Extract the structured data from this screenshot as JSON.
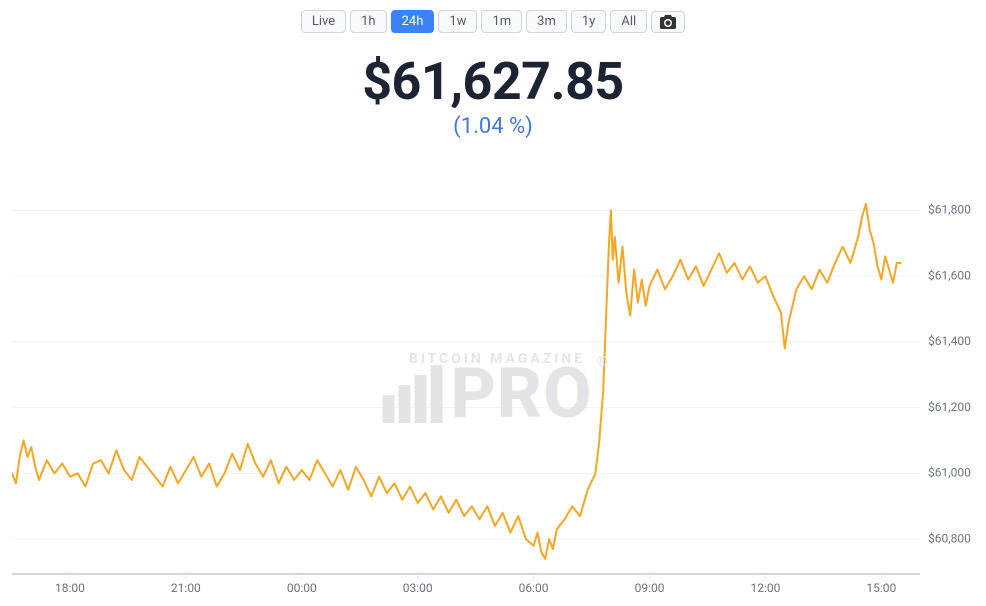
{
  "timeframes": {
    "options": [
      "Live",
      "1h",
      "24h",
      "1w",
      "1m",
      "3m",
      "1y",
      "All"
    ],
    "active_index": 2
  },
  "header": {
    "price": "$61,627.85",
    "change": "(1.04 %)",
    "change_color": "#4178d6"
  },
  "watermark": {
    "subtitle": "BITCOIN MAGAZINE",
    "main": "PRO"
  },
  "chart": {
    "type": "line",
    "line_color": "#f5a623",
    "line_width": 2,
    "background_color": "#ffffff",
    "grid_color": "#f1f2f4",
    "ylim": [
      60700,
      61850
    ],
    "yticks": [
      60800,
      61000,
      61200,
      61400,
      61600,
      61800
    ],
    "ytick_labels": [
      "$60,800",
      "$61,000",
      "$61,200",
      "$61,400",
      "$61,600",
      "$61,800"
    ],
    "xticks_hours": [
      18,
      21,
      24,
      27,
      30,
      33,
      36,
      39
    ],
    "xtick_labels": [
      "18:00",
      "21:00",
      "00:00",
      "03:00",
      "06:00",
      "09:00",
      "12:00",
      "15:00"
    ],
    "x_hour_min": 16.5,
    "x_hour_max": 40.0,
    "series": [
      [
        16.5,
        61000
      ],
      [
        16.6,
        60970
      ],
      [
        16.7,
        61050
      ],
      [
        16.8,
        61100
      ],
      [
        16.9,
        61050
      ],
      [
        17.0,
        61080
      ],
      [
        17.1,
        61020
      ],
      [
        17.2,
        60980
      ],
      [
        17.4,
        61040
      ],
      [
        17.6,
        61000
      ],
      [
        17.8,
        61030
      ],
      [
        18.0,
        60990
      ],
      [
        18.2,
        61000
      ],
      [
        18.4,
        60960
      ],
      [
        18.6,
        61030
      ],
      [
        18.8,
        61040
      ],
      [
        19.0,
        61000
      ],
      [
        19.2,
        61070
      ],
      [
        19.4,
        61010
      ],
      [
        19.6,
        60980
      ],
      [
        19.8,
        61050
      ],
      [
        20.0,
        61020
      ],
      [
        20.2,
        60990
      ],
      [
        20.4,
        60960
      ],
      [
        20.6,
        61020
      ],
      [
        20.8,
        60970
      ],
      [
        21.0,
        61010
      ],
      [
        21.2,
        61050
      ],
      [
        21.4,
        60990
      ],
      [
        21.6,
        61030
      ],
      [
        21.8,
        60960
      ],
      [
        22.0,
        61000
      ],
      [
        22.2,
        61060
      ],
      [
        22.4,
        61010
      ],
      [
        22.6,
        61090
      ],
      [
        22.8,
        61030
      ],
      [
        23.0,
        60990
      ],
      [
        23.2,
        61040
      ],
      [
        23.4,
        60970
      ],
      [
        23.6,
        61020
      ],
      [
        23.8,
        60980
      ],
      [
        24.0,
        61010
      ],
      [
        24.2,
        60980
      ],
      [
        24.4,
        61040
      ],
      [
        24.6,
        61000
      ],
      [
        24.8,
        60960
      ],
      [
        25.0,
        61010
      ],
      [
        25.2,
        60950
      ],
      [
        25.4,
        61020
      ],
      [
        25.6,
        60980
      ],
      [
        25.8,
        60930
      ],
      [
        26.0,
        60990
      ],
      [
        26.2,
        60940
      ],
      [
        26.4,
        60970
      ],
      [
        26.6,
        60920
      ],
      [
        26.8,
        60960
      ],
      [
        27.0,
        60910
      ],
      [
        27.2,
        60940
      ],
      [
        27.4,
        60890
      ],
      [
        27.6,
        60930
      ],
      [
        27.8,
        60880
      ],
      [
        28.0,
        60920
      ],
      [
        28.2,
        60870
      ],
      [
        28.4,
        60900
      ],
      [
        28.6,
        60860
      ],
      [
        28.8,
        60900
      ],
      [
        29.0,
        60840
      ],
      [
        29.2,
        60880
      ],
      [
        29.4,
        60820
      ],
      [
        29.6,
        60870
      ],
      [
        29.8,
        60800
      ],
      [
        30.0,
        60780
      ],
      [
        30.1,
        60820
      ],
      [
        30.2,
        60760
      ],
      [
        30.3,
        60740
      ],
      [
        30.4,
        60800
      ],
      [
        30.5,
        60770
      ],
      [
        30.6,
        60830
      ],
      [
        30.8,
        60860
      ],
      [
        31.0,
        60900
      ],
      [
        31.2,
        60870
      ],
      [
        31.4,
        60950
      ],
      [
        31.6,
        61000
      ],
      [
        31.7,
        61100
      ],
      [
        31.8,
        61250
      ],
      [
        31.85,
        61400
      ],
      [
        31.9,
        61550
      ],
      [
        31.95,
        61700
      ],
      [
        32.0,
        61800
      ],
      [
        32.05,
        61650
      ],
      [
        32.1,
        61720
      ],
      [
        32.2,
        61580
      ],
      [
        32.3,
        61690
      ],
      [
        32.4,
        61550
      ],
      [
        32.5,
        61480
      ],
      [
        32.6,
        61620
      ],
      [
        32.7,
        61520
      ],
      [
        32.8,
        61590
      ],
      [
        32.9,
        61510
      ],
      [
        33.0,
        61570
      ],
      [
        33.2,
        61620
      ],
      [
        33.4,
        61560
      ],
      [
        33.6,
        61600
      ],
      [
        33.8,
        61650
      ],
      [
        34.0,
        61590
      ],
      [
        34.2,
        61630
      ],
      [
        34.4,
        61570
      ],
      [
        34.6,
        61620
      ],
      [
        34.8,
        61670
      ],
      [
        35.0,
        61610
      ],
      [
        35.2,
        61640
      ],
      [
        35.4,
        61590
      ],
      [
        35.6,
        61630
      ],
      [
        35.8,
        61580
      ],
      [
        36.0,
        61600
      ],
      [
        36.2,
        61540
      ],
      [
        36.4,
        61490
      ],
      [
        36.5,
        61380
      ],
      [
        36.6,
        61460
      ],
      [
        36.8,
        61560
      ],
      [
        37.0,
        61600
      ],
      [
        37.2,
        61560
      ],
      [
        37.4,
        61620
      ],
      [
        37.6,
        61580
      ],
      [
        37.8,
        61640
      ],
      [
        38.0,
        61690
      ],
      [
        38.2,
        61640
      ],
      [
        38.4,
        61720
      ],
      [
        38.5,
        61780
      ],
      [
        38.6,
        61820
      ],
      [
        38.7,
        61740
      ],
      [
        38.8,
        61700
      ],
      [
        38.9,
        61630
      ],
      [
        39.0,
        61590
      ],
      [
        39.1,
        61660
      ],
      [
        39.2,
        61620
      ],
      [
        39.3,
        61580
      ],
      [
        39.4,
        61640
      ],
      [
        39.5,
        61640
      ]
    ]
  }
}
